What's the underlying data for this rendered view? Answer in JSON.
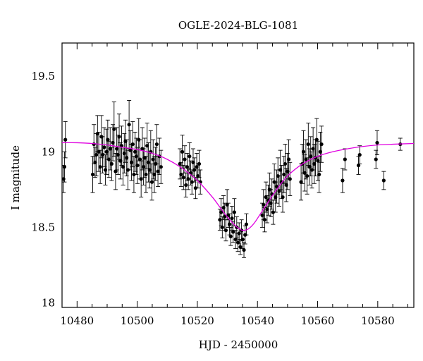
{
  "chart_data": {
    "type": "scatter",
    "title": "OGLE-2024-BLG-1081",
    "xlabel": "HJD - 2450000",
    "ylabel": "I magnitude",
    "xlim": [
      10475,
      10592
    ],
    "ylim": [
      19.72,
      17.97
    ],
    "y_inverted": true,
    "grid": false,
    "x_ticks": [
      10480,
      10500,
      10520,
      10540,
      10560,
      10580
    ],
    "y_ticks": [
      18,
      18.5,
      19,
      19.5
    ],
    "model_color": "#e000e0",
    "point_color": "#000000",
    "model": {
      "name": "",
      "x": [
        10475,
        10480,
        10485,
        10490,
        10495,
        10500,
        10505,
        10510,
        10515,
        10520,
        10525,
        10528,
        10531,
        10533,
        10535,
        10537,
        10539,
        10541,
        10543,
        10546,
        10550,
        10555,
        10560,
        10565,
        10570,
        10575,
        10580,
        10585,
        10592
      ],
      "y": [
        19.06,
        19.06,
        19.055,
        19.045,
        19.03,
        19.015,
        18.99,
        18.95,
        18.89,
        18.81,
        18.7,
        18.62,
        18.545,
        18.505,
        18.48,
        18.49,
        18.53,
        18.59,
        18.65,
        18.74,
        18.84,
        18.92,
        18.97,
        19.0,
        19.02,
        19.035,
        19.045,
        19.05,
        19.055
      ]
    },
    "points": {
      "name": "",
      "x": [
        10475.5,
        10475.8,
        10476.1,
        10485.2,
        10485.6,
        10486.0,
        10486.4,
        10486.8,
        10487.2,
        10487.7,
        10488.1,
        10488.5,
        10489.0,
        10489.4,
        10489.8,
        10490.2,
        10490.6,
        10491.0,
        10491.5,
        10491.9,
        10492.3,
        10492.8,
        10493.2,
        10493.6,
        10494.0,
        10494.4,
        10494.8,
        10495.3,
        10495.7,
        10496.1,
        10496.5,
        10496.9,
        10497.3,
        10497.7,
        10498.1,
        10498.5,
        10498.9,
        10499.3,
        10499.7,
        10500.1,
        10500.5,
        10500.9,
        10501.3,
        10501.7,
        10502.1,
        10502.5,
        10502.9,
        10503.3,
        10503.7,
        10504.1,
        10504.5,
        10504.9,
        10505.3,
        10505.7,
        10506.1,
        10506.5,
        10506.9,
        10507.4,
        10507.9,
        10514.2,
        10514.6,
        10515.0,
        10515.4,
        10515.8,
        10516.2,
        10516.6,
        10517.0,
        10517.4,
        10517.8,
        10518.2,
        10518.6,
        10519.0,
        10519.4,
        10519.8,
        10520.2,
        10520.6,
        10521.0,
        10527.5,
        10527.9,
        10528.3,
        10528.7,
        10529.1,
        10529.5,
        10529.9,
        10530.3,
        10530.7,
        10531.1,
        10531.5,
        10531.9,
        10532.3,
        10532.7,
        10533.1,
        10533.5,
        10533.9,
        10534.3,
        10534.7,
        10535.1,
        10535.5,
        10535.9,
        10536.3,
        10541.6,
        10542.0,
        10542.4,
        10542.8,
        10543.2,
        10543.6,
        10544.0,
        10544.4,
        10544.8,
        10545.2,
        10545.6,
        10546.0,
        10546.4,
        10546.8,
        10547.2,
        10547.6,
        10548.0,
        10548.4,
        10548.8,
        10549.2,
        10549.6,
        10550.0,
        10550.4,
        10550.8,
        10554.5,
        10554.9,
        10555.3,
        10555.7,
        10556.1,
        10556.5,
        10556.9,
        10557.3,
        10557.7,
        10558.1,
        10558.5,
        10558.9,
        10559.3,
        10559.7,
        10560.1,
        10560.5,
        10560.9,
        10561.3,
        10568.3,
        10569.1,
        10573.6,
        10574.0,
        10579.4,
        10579.8,
        10582.0,
        10587.5
      ],
      "y": [
        18.82,
        18.9,
        19.08,
        18.85,
        19.05,
        18.93,
        18.98,
        19.12,
        19.0,
        18.9,
        19.1,
        18.98,
        19.03,
        18.88,
        19.0,
        19.08,
        18.95,
        19.02,
        18.92,
        19.06,
        19.15,
        18.87,
        19.02,
        18.98,
        19.1,
        18.94,
        19.04,
        18.9,
        18.99,
        19.07,
        18.96,
        18.88,
        19.18,
        19.01,
        18.93,
        19.05,
        18.85,
        19.0,
        18.97,
        18.91,
        19.08,
        18.95,
        18.82,
        19.02,
        18.9,
        18.96,
        18.85,
        19.04,
        18.93,
        18.88,
        19.0,
        18.8,
        18.95,
        18.85,
        18.92,
        19.05,
        18.87,
        18.97,
        18.9,
        18.92,
        18.85,
        19.0,
        18.83,
        18.95,
        18.78,
        18.9,
        18.82,
        18.97,
        18.86,
        18.8,
        18.93,
        18.88,
        18.76,
        18.9,
        18.84,
        18.92,
        18.8,
        18.55,
        18.6,
        18.5,
        18.63,
        18.57,
        18.48,
        18.65,
        18.58,
        18.52,
        18.44,
        18.56,
        18.47,
        18.6,
        18.42,
        18.5,
        18.4,
        18.46,
        18.37,
        18.48,
        18.42,
        18.35,
        18.45,
        18.52,
        18.58,
        18.65,
        18.55,
        18.7,
        18.62,
        18.68,
        18.75,
        18.66,
        18.72,
        18.6,
        18.8,
        18.7,
        18.77,
        18.84,
        18.74,
        18.88,
        18.8,
        18.7,
        18.85,
        18.92,
        18.78,
        18.87,
        18.95,
        18.82,
        18.8,
        18.92,
        19.0,
        18.86,
        18.95,
        18.84,
        19.05,
        18.9,
        18.97,
        18.88,
        19.02,
        18.92,
        18.96,
        19.08,
        18.94,
        18.85,
        19.0,
        19.05,
        18.81,
        18.95,
        18.91,
        18.98,
        18.95,
        19.06,
        18.81,
        19.05
      ],
      "err": [
        0.09,
        0.1,
        0.12,
        0.12,
        0.13,
        0.1,
        0.14,
        0.12,
        0.13,
        0.11,
        0.14,
        0.12,
        0.13,
        0.1,
        0.15,
        0.13,
        0.12,
        0.14,
        0.11,
        0.12,
        0.18,
        0.12,
        0.14,
        0.13,
        0.15,
        0.12,
        0.13,
        0.12,
        0.13,
        0.14,
        0.12,
        0.13,
        0.16,
        0.13,
        0.12,
        0.15,
        0.12,
        0.13,
        0.12,
        0.12,
        0.14,
        0.13,
        0.12,
        0.14,
        0.12,
        0.13,
        0.12,
        0.15,
        0.13,
        0.12,
        0.14,
        0.12,
        0.13,
        0.12,
        0.11,
        0.13,
        0.1,
        0.12,
        0.11,
        0.1,
        0.08,
        0.11,
        0.08,
        0.09,
        0.08,
        0.09,
        0.07,
        0.09,
        0.08,
        0.08,
        0.09,
        0.08,
        0.07,
        0.09,
        0.08,
        0.09,
        0.08,
        0.07,
        0.09,
        0.07,
        0.08,
        0.09,
        0.07,
        0.1,
        0.08,
        0.07,
        0.06,
        0.08,
        0.07,
        0.09,
        0.06,
        0.07,
        0.06,
        0.07,
        0.05,
        0.07,
        0.06,
        0.05,
        0.06,
        0.07,
        0.08,
        0.1,
        0.08,
        0.1,
        0.09,
        0.1,
        0.11,
        0.09,
        0.1,
        0.08,
        0.12,
        0.1,
        0.11,
        0.12,
        0.1,
        0.13,
        0.11,
        0.1,
        0.12,
        0.13,
        0.11,
        0.12,
        0.13,
        0.11,
        0.12,
        0.13,
        0.14,
        0.12,
        0.13,
        0.12,
        0.14,
        0.12,
        0.13,
        0.12,
        0.14,
        0.13,
        0.12,
        0.14,
        0.13,
        0.12,
        0.13,
        0.12,
        0.08,
        0.07,
        0.06,
        0.06,
        0.06,
        0.08,
        0.06,
        0.04
      ]
    }
  }
}
